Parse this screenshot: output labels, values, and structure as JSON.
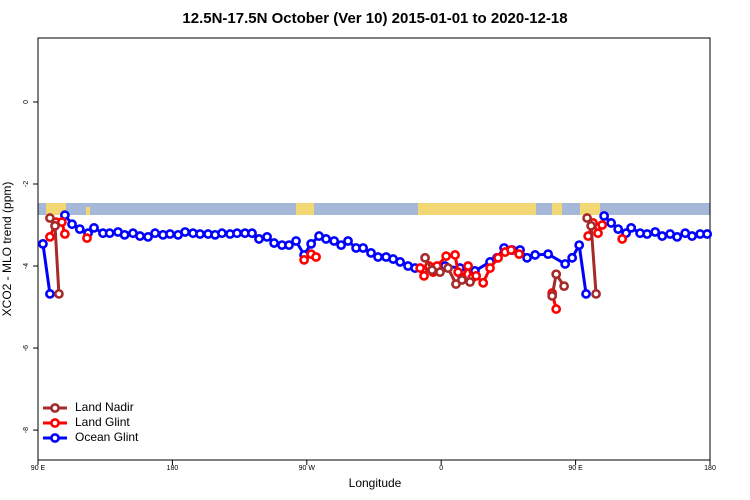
{
  "chart_data": {
    "type": "line",
    "title": "12.5N-17.5N October (Ver 10)   2015-01-01 to 2020-12-18",
    "xlabel": "Longitude",
    "ylabel": "XCO2 - MLO trend (ppm)",
    "xlim": [
      90,
      540
    ],
    "ylim": [
      -8.73,
      1.56
    ],
    "xticks": [
      {
        "value": 90,
        "label": "90 E"
      },
      180,
      {
        "value": 270,
        "label": "90 W"
      },
      {
        "value": 360,
        "label": "0"
      },
      {
        "value": 450,
        "label": "90 E"
      },
      {
        "value": 540,
        "label": "180"
      }
    ],
    "yticks": [
      0,
      -2,
      -4,
      -6,
      -8
    ],
    "legend": "bottom-left",
    "series": [
      {
        "name": "Land Nadir",
        "color": "#a52a2a",
        "x": [
          98,
          101.4,
          104,
          106,
          349.2,
          353.9,
          359.2,
          364.6,
          369.9,
          373.9,
          379.3,
          382,
          434.3,
          437,
          442.3,
          444,
          457.7,
          460.4,
          463.7
        ],
        "values": [
          -2.83,
          -3.02,
          -4.68,
          null,
          -3.8,
          -4.1,
          -4.15,
          -4.05,
          -4.44,
          -4.34,
          -4.39,
          null,
          -4.73,
          -4.2,
          -4.49,
          null,
          -2.83,
          -3.02,
          -4.68
        ]
      },
      {
        "name": "Land Glint",
        "color": "#ff0000",
        "x": [
          98,
          102,
          106,
          108,
          115,
          122.8,
          200,
          268.2,
          272.9,
          276.2,
          300,
          345.9,
          348.5,
          351.9,
          354.6,
          357.2,
          363.3,
          369.3,
          371.3,
          374,
          378,
          380.7,
          383.4,
          388.1,
          392.7,
          398.1,
          402.8,
          406.8,
          412.2,
          420,
          434.3,
          437,
          450,
          458.4,
          461.7,
          465,
          467.8,
          475,
          481.2
        ],
        "values": [
          -3.29,
          -2.93,
          -2.93,
          -3.22,
          null,
          -3.32,
          null,
          -3.85,
          -3.71,
          -3.78,
          null,
          -4.05,
          -4.24,
          -4.0,
          -4.15,
          -4.0,
          -3.76,
          -3.73,
          -4.15,
          -4.29,
          -4.0,
          -4.29,
          -4.24,
          -4.41,
          -4.05,
          -3.8,
          -3.66,
          -3.61,
          -3.71,
          null,
          -4.66,
          -5.05,
          null,
          -3.27,
          -2.95,
          -3.2,
          -3.0,
          null,
          -3.34
        ]
      },
      {
        "name": "Ocean Glint",
        "color": "#0000ff",
        "x": [
          93.3,
          98,
          103,
          108,
          112.8,
          118,
          123.5,
          127.5,
          133.5,
          138,
          143.6,
          148,
          153.6,
          158.3,
          163.7,
          168.4,
          173.7,
          178.4,
          183.8,
          188.5,
          193.8,
          198.5,
          203.9,
          208.6,
          213.2,
          218.6,
          223.3,
          228.6,
          233.3,
          238,
          243.4,
          248.1,
          253.4,
          258.1,
          262.8,
          268.2,
          272.9,
          278.2,
          282.9,
          288.3,
          293,
          297.6,
          303,
          307.7,
          313,
          317.7,
          323.1,
          327.8,
          332.5,
          337.8,
          342.5,
          352.5,
          362.5,
          372.6,
          382.6,
          392.7,
          397.4,
          402.1,
          407.5,
          412.8,
          417.5,
          422.9,
          431.6,
          443,
          447.7,
          452.4,
          457,
          463,
          469.1,
          473.8,
          478.5,
          483.8,
          487.2,
          493.2,
          497.9,
          503.3,
          508,
          513.3,
          518,
          523.4,
          528,
          533.4,
          538.1
        ],
        "values": [
          -3.46,
          -4.68,
          null,
          -2.76,
          -2.98,
          -3.1,
          -3.2,
          -3.07,
          -3.2,
          -3.2,
          -3.17,
          -3.24,
          -3.2,
          -3.27,
          -3.29,
          -3.2,
          -3.24,
          -3.22,
          -3.24,
          -3.17,
          -3.2,
          -3.22,
          -3.22,
          -3.24,
          -3.2,
          -3.22,
          -3.2,
          -3.2,
          -3.2,
          -3.34,
          -3.29,
          -3.44,
          -3.49,
          -3.49,
          -3.39,
          -3.73,
          -3.46,
          -3.27,
          -3.34,
          -3.39,
          -3.49,
          -3.39,
          -3.56,
          -3.56,
          -3.68,
          -3.78,
          -3.78,
          -3.83,
          -3.9,
          -4.0,
          -4.05,
          -4.05,
          -4.0,
          -4.05,
          -4.12,
          -3.9,
          -3.8,
          -3.56,
          -3.61,
          -3.61,
          -3.8,
          -3.73,
          -3.71,
          -3.95,
          -3.8,
          -3.49,
          -4.68,
          null,
          -2.78,
          -2.95,
          -3.1,
          -3.2,
          -3.07,
          -3.2,
          -3.22,
          -3.17,
          -3.27,
          -3.22,
          -3.29,
          -3.2,
          -3.27,
          -3.22,
          -3.22
        ]
      }
    ]
  }
}
